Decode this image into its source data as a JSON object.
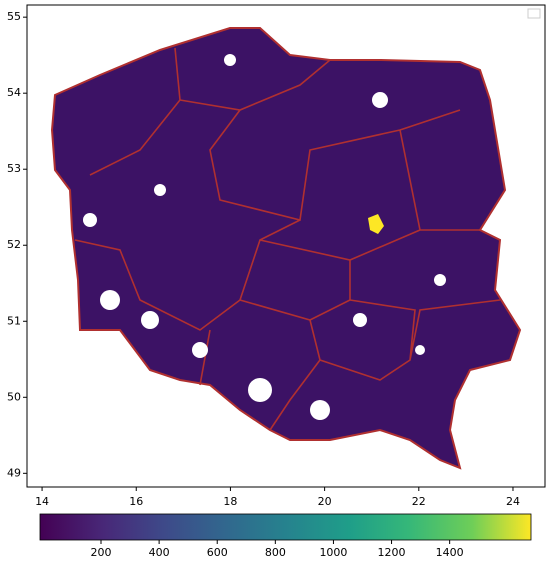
{
  "chart_data": {
    "type": "choropleth",
    "xlim": [
      13.68,
      24.68
    ],
    "ylim": [
      48.82,
      55.16
    ],
    "xticks": [
      14,
      16,
      18,
      20,
      22,
      24
    ],
    "yticks": [
      49,
      50,
      51,
      52,
      53,
      54,
      55
    ],
    "colorbar_lim": [
      -10,
      1680
    ],
    "colorbar_ticks": [
      200,
      400,
      600,
      800,
      1000,
      1200,
      1400
    ]
  }
}
